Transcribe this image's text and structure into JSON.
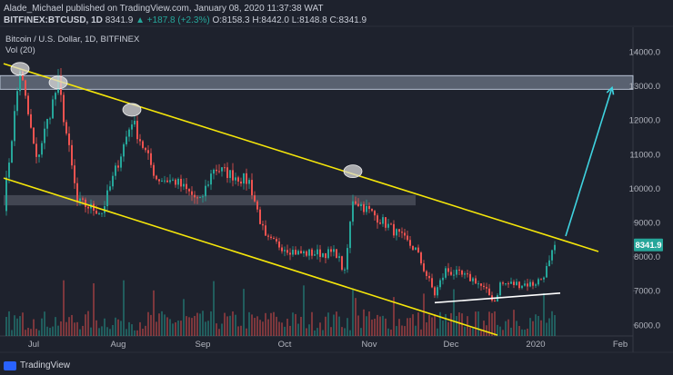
{
  "header": {
    "publish_line": "Alade_Michael published on TradingView.com, January 08, 2020 11:37:38 WAT",
    "symbol_line_prefix": "BITFINEX:BTCUSD, 1D",
    "symbol_price": "8341.9",
    "symbol_change": "▲ +187.8 (+2.3%)",
    "ohlc": "O:8158.3 H:8442.0 L:8148.8 C:8341.9"
  },
  "chart_title": "Bitcoin / U.S. Dollar, 1D, BITFINEX",
  "volume_label": "Vol (20)",
  "footer": {
    "brand": "TradingView"
  },
  "colors": {
    "background": "#1e222d",
    "up": "#26a69a",
    "down": "#ef5350",
    "channel": "#f5e60a",
    "resistance_band": "#8a95a8",
    "arrow": "#3fd3e0",
    "support": "#ffffff"
  },
  "chart_data": {
    "type": "candlestick",
    "y_axis": {
      "ticks": [
        6000,
        7000,
        8000,
        9000,
        10000,
        11000,
        12000,
        13000,
        14000
      ],
      "range": [
        5600,
        14600
      ],
      "position": "right"
    },
    "x_axis": {
      "ticks": [
        "Jul",
        "Aug",
        "Sep",
        "Oct",
        "Nov",
        "Dec",
        "2020",
        "Feb"
      ]
    },
    "last_price": 8341.9,
    "price_path": [
      {
        "date": "Jun 20",
        "close": 9500
      },
      {
        "date": "Jun 26",
        "close": 13500
      },
      {
        "date": "Jul 02",
        "close": 10800
      },
      {
        "date": "Jul 10",
        "close": 13100
      },
      {
        "date": "Jul 17",
        "close": 9600
      },
      {
        "date": "Jul 26",
        "close": 9300
      },
      {
        "date": "Aug 06",
        "close": 12000
      },
      {
        "date": "Aug 15",
        "close": 10300
      },
      {
        "date": "Aug 22",
        "close": 10200
      },
      {
        "date": "Aug 31",
        "close": 9600
      },
      {
        "date": "Sep 05",
        "close": 10600
      },
      {
        "date": "Sep 18",
        "close": 10200
      },
      {
        "date": "Sep 24",
        "close": 8500
      },
      {
        "date": "Oct 06",
        "close": 8100
      },
      {
        "date": "Oct 20",
        "close": 8100
      },
      {
        "date": "Oct 23",
        "close": 7500
      },
      {
        "date": "Oct 26",
        "close": 9700
      },
      {
        "date": "Nov 08",
        "close": 8900
      },
      {
        "date": "Nov 18",
        "close": 8200
      },
      {
        "date": "Nov 25",
        "close": 6900
      },
      {
        "date": "Nov 29",
        "close": 7600
      },
      {
        "date": "Dec 10",
        "close": 7300
      },
      {
        "date": "Dec 17",
        "close": 6700
      },
      {
        "date": "Dec 19",
        "close": 7200
      },
      {
        "date": "Dec 31",
        "close": 7200
      },
      {
        "date": "Jan 03",
        "close": 7350
      },
      {
        "date": "Jan 06",
        "close": 7800
      },
      {
        "date": "Jan 08",
        "close": 8341.9
      }
    ],
    "annotations": [
      {
        "kind": "descending_channel_upper",
        "from": {
          "date": "Jun 20",
          "price": 13650
        },
        "to": {
          "date": "Jan 24",
          "price": 8150
        }
      },
      {
        "kind": "descending_channel_lower",
        "from": {
          "date": "Jun 20",
          "price": 10300
        },
        "to": {
          "date": "Dec 18",
          "price": 5700
        }
      },
      {
        "kind": "resistance_zone",
        "price_range": [
          12900,
          13300
        ]
      },
      {
        "kind": "range_zone",
        "price_range": [
          9500,
          9800
        ],
        "date_range": [
          "Jun 20",
          "Nov 18"
        ]
      },
      {
        "kind": "support_line",
        "from": {
          "date": "Nov 25",
          "price": 6650
        },
        "to": {
          "date": "Jan 10",
          "price": 6930
        }
      },
      {
        "kind": "target_arrow",
        "from": {
          "date": "Jan 12",
          "price": 8600
        },
        "to": {
          "date": "Jan 29",
          "price": 12950
        }
      },
      {
        "kind": "swing_high_marker",
        "date": "Jun 26",
        "price": 13500
      },
      {
        "kind": "swing_high_marker",
        "date": "Jul 10",
        "price": 13100
      },
      {
        "kind": "swing_high_marker",
        "date": "Aug 06",
        "price": 12300
      },
      {
        "kind": "swing_high_marker",
        "date": "Oct 26",
        "price": 10500
      }
    ]
  }
}
